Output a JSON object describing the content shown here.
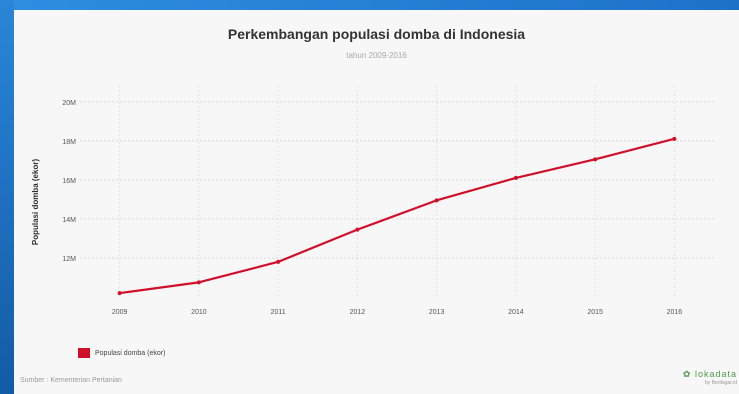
{
  "chart_data": {
    "type": "line",
    "title": "Perkembangan populasi domba di Indonesia",
    "subtitle": "tahun 2009-2016",
    "ylabel": "Populasi domba (ekor)",
    "xlabel": "",
    "categories": [
      "2009",
      "2010",
      "2011",
      "2012",
      "2013",
      "2014",
      "2015",
      "2016"
    ],
    "series": [
      {
        "name": "Populasi domba (ekor)",
        "color": "#d0102a",
        "values": [
          10200000,
          10750000,
          11800000,
          13450000,
          14950000,
          16100000,
          17050000,
          18100000
        ]
      }
    ],
    "yticks": [
      {
        "value": 12000000,
        "label": "12M"
      },
      {
        "value": 14000000,
        "label": "14M"
      },
      {
        "value": 16000000,
        "label": "16M"
      },
      {
        "value": 18000000,
        "label": "18M"
      },
      {
        "value": 20000000,
        "label": "20M"
      }
    ],
    "ylim": [
      10000000,
      20500000
    ],
    "grid": true,
    "legend_position": "bottom-left"
  },
  "footer": {
    "source": "Sumber : Kementerian Pertanian",
    "brand": "lokadata",
    "brand_tagline": "by Beritagar.id"
  }
}
